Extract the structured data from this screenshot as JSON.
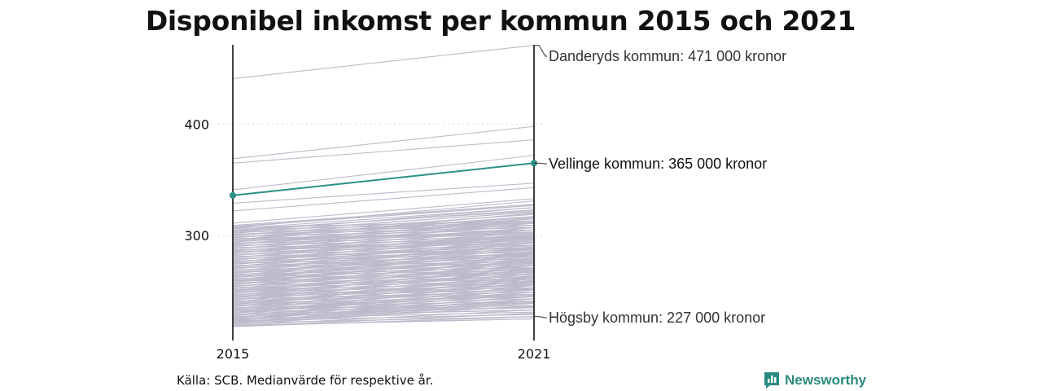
{
  "chart_data": {
    "type": "line",
    "title": "Disponibel inkomst per kommun 2015 och 2021",
    "unit": "tusen kronor",
    "x": [
      "2015",
      "2021"
    ],
    "y_ticks": [
      300,
      400
    ],
    "ylim": [
      210,
      475
    ],
    "grid": true,
    "highlight": {
      "name": "Vellinge kommun",
      "values": [
        336,
        365
      ],
      "label": "Vellinge kommun: 365 000 kronor",
      "color": "#2a9184"
    },
    "annotations": [
      {
        "label": "Danderyds kommun: 471 000 kronor",
        "value": 471
      },
      {
        "label": "Högsby kommun: 227 000 kronor",
        "value": 227
      }
    ],
    "background_series": [
      [
        441,
        471
      ],
      [
        369,
        398
      ],
      [
        365,
        386
      ],
      [
        341,
        372
      ],
      [
        329,
        347
      ],
      [
        322,
        343
      ],
      [
        311,
        333
      ],
      [
        309,
        328
      ],
      [
        307,
        331
      ],
      [
        305,
        322
      ],
      [
        303,
        325
      ],
      [
        300,
        319
      ],
      [
        298,
        316
      ],
      [
        296,
        320
      ],
      [
        294,
        312
      ],
      [
        292,
        315
      ],
      [
        290,
        309
      ],
      [
        288,
        311
      ],
      [
        286,
        305
      ],
      [
        284,
        307
      ],
      [
        282,
        300
      ],
      [
        280,
        303
      ],
      [
        278,
        298
      ],
      [
        276,
        300
      ],
      [
        274,
        294
      ],
      [
        272,
        297
      ],
      [
        270,
        291
      ],
      [
        268,
        293
      ],
      [
        266,
        288
      ],
      [
        264,
        290
      ],
      [
        262,
        284
      ],
      [
        260,
        286
      ],
      [
        258,
        281
      ],
      [
        256,
        283
      ],
      [
        254,
        278
      ],
      [
        252,
        280
      ],
      [
        250,
        274
      ],
      [
        248,
        276
      ],
      [
        246,
        271
      ],
      [
        244,
        273
      ],
      [
        242,
        268
      ],
      [
        240,
        270
      ],
      [
        238,
        264
      ],
      [
        236,
        266
      ],
      [
        234,
        261
      ],
      [
        232,
        263
      ],
      [
        230,
        258
      ],
      [
        228,
        260
      ],
      [
        226,
        255
      ],
      [
        225,
        252
      ],
      [
        224,
        249
      ],
      [
        223,
        246
      ],
      [
        222,
        243
      ],
      [
        221,
        240
      ],
      [
        220,
        237
      ],
      [
        219,
        233
      ],
      [
        218,
        230
      ],
      [
        218,
        227
      ],
      [
        296,
        302
      ],
      [
        287,
        296
      ],
      [
        279,
        289
      ],
      [
        271,
        284
      ],
      [
        263,
        278
      ],
      [
        257,
        270
      ],
      [
        249,
        265
      ],
      [
        243,
        258
      ],
      [
        237,
        252
      ],
      [
        233,
        247
      ],
      [
        229,
        241
      ],
      [
        227,
        236
      ],
      [
        301,
        313
      ],
      [
        293,
        305
      ],
      [
        285,
        298
      ],
      [
        275,
        288
      ],
      [
        267,
        282
      ],
      [
        259,
        276
      ],
      [
        251,
        268
      ],
      [
        245,
        262
      ],
      [
        239,
        256
      ],
      [
        231,
        249
      ]
    ],
    "colors": {
      "background_lines": "#bdbbcb",
      "axis": "#111111",
      "grid": "#dddddd"
    }
  },
  "source": "Källa: SCB. Medianvärde för respektive år.",
  "brand": {
    "name": "Newsworthy",
    "color": "#2a8a7f"
  }
}
